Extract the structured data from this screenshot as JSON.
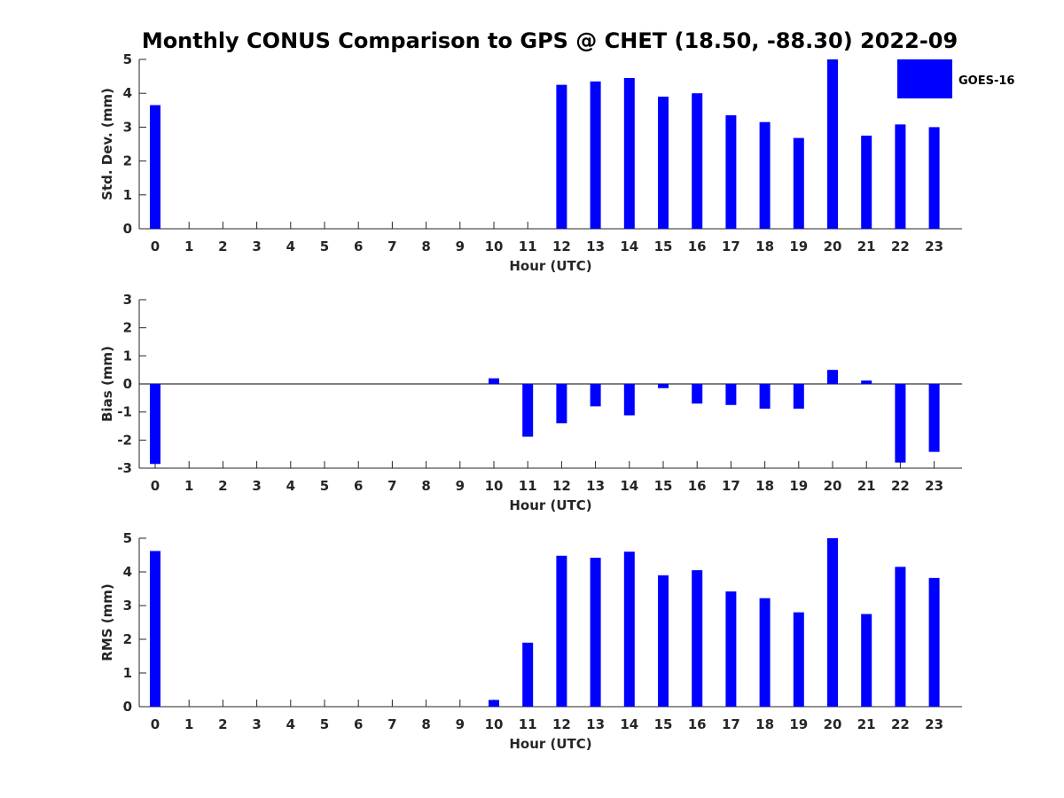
{
  "title": "Monthly CONUS Comparison to GPS @ CHET (18.50, -88.30) 2022-09",
  "legend": {
    "label": "GOES-16",
    "color": "#0000ff"
  },
  "chart_data": [
    {
      "type": "bar",
      "ylabel": "Std. Dev. (mm)",
      "xlabel": "Hour (UTC)",
      "x": [
        0,
        1,
        2,
        3,
        4,
        5,
        6,
        7,
        8,
        9,
        10,
        11,
        12,
        13,
        14,
        15,
        16,
        17,
        18,
        19,
        20,
        21,
        22,
        23
      ],
      "ylim": [
        0,
        5
      ],
      "yticks": [
        0,
        1,
        2,
        3,
        4,
        5
      ],
      "series": [
        {
          "name": "GOES-16",
          "values": [
            3.65,
            null,
            null,
            null,
            null,
            null,
            null,
            null,
            null,
            null,
            null,
            null,
            4.25,
            4.35,
            4.45,
            3.9,
            4.0,
            3.35,
            3.15,
            2.68,
            5.0,
            2.75,
            3.08,
            3.0
          ]
        }
      ]
    },
    {
      "type": "bar",
      "ylabel": "Bias (mm)",
      "xlabel": "Hour (UTC)",
      "x": [
        0,
        1,
        2,
        3,
        4,
        5,
        6,
        7,
        8,
        9,
        10,
        11,
        12,
        13,
        14,
        15,
        16,
        17,
        18,
        19,
        20,
        21,
        22,
        23
      ],
      "ylim": [
        -3,
        3
      ],
      "yticks": [
        -3,
        -2,
        -1,
        0,
        1,
        2,
        3
      ],
      "zero_line": true,
      "series": [
        {
          "name": "GOES-16",
          "values": [
            -2.85,
            null,
            null,
            null,
            null,
            null,
            null,
            null,
            null,
            null,
            0.2,
            -1.88,
            -1.4,
            -0.8,
            -1.12,
            -0.15,
            -0.7,
            -0.75,
            -0.88,
            -0.88,
            0.5,
            0.12,
            -2.8,
            -2.42
          ]
        }
      ]
    },
    {
      "type": "bar",
      "ylabel": "RMS (mm)",
      "xlabel": "Hour (UTC)",
      "x": [
        0,
        1,
        2,
        3,
        4,
        5,
        6,
        7,
        8,
        9,
        10,
        11,
        12,
        13,
        14,
        15,
        16,
        17,
        18,
        19,
        20,
        21,
        22,
        23
      ],
      "ylim": [
        0,
        5
      ],
      "yticks": [
        0,
        1,
        2,
        3,
        4,
        5
      ],
      "series": [
        {
          "name": "GOES-16",
          "values": [
            4.62,
            null,
            null,
            null,
            null,
            null,
            null,
            null,
            null,
            null,
            0.2,
            1.9,
            4.48,
            4.42,
            4.6,
            3.9,
            4.05,
            3.42,
            3.22,
            2.8,
            5.0,
            2.75,
            4.15,
            3.82
          ]
        }
      ]
    }
  ]
}
